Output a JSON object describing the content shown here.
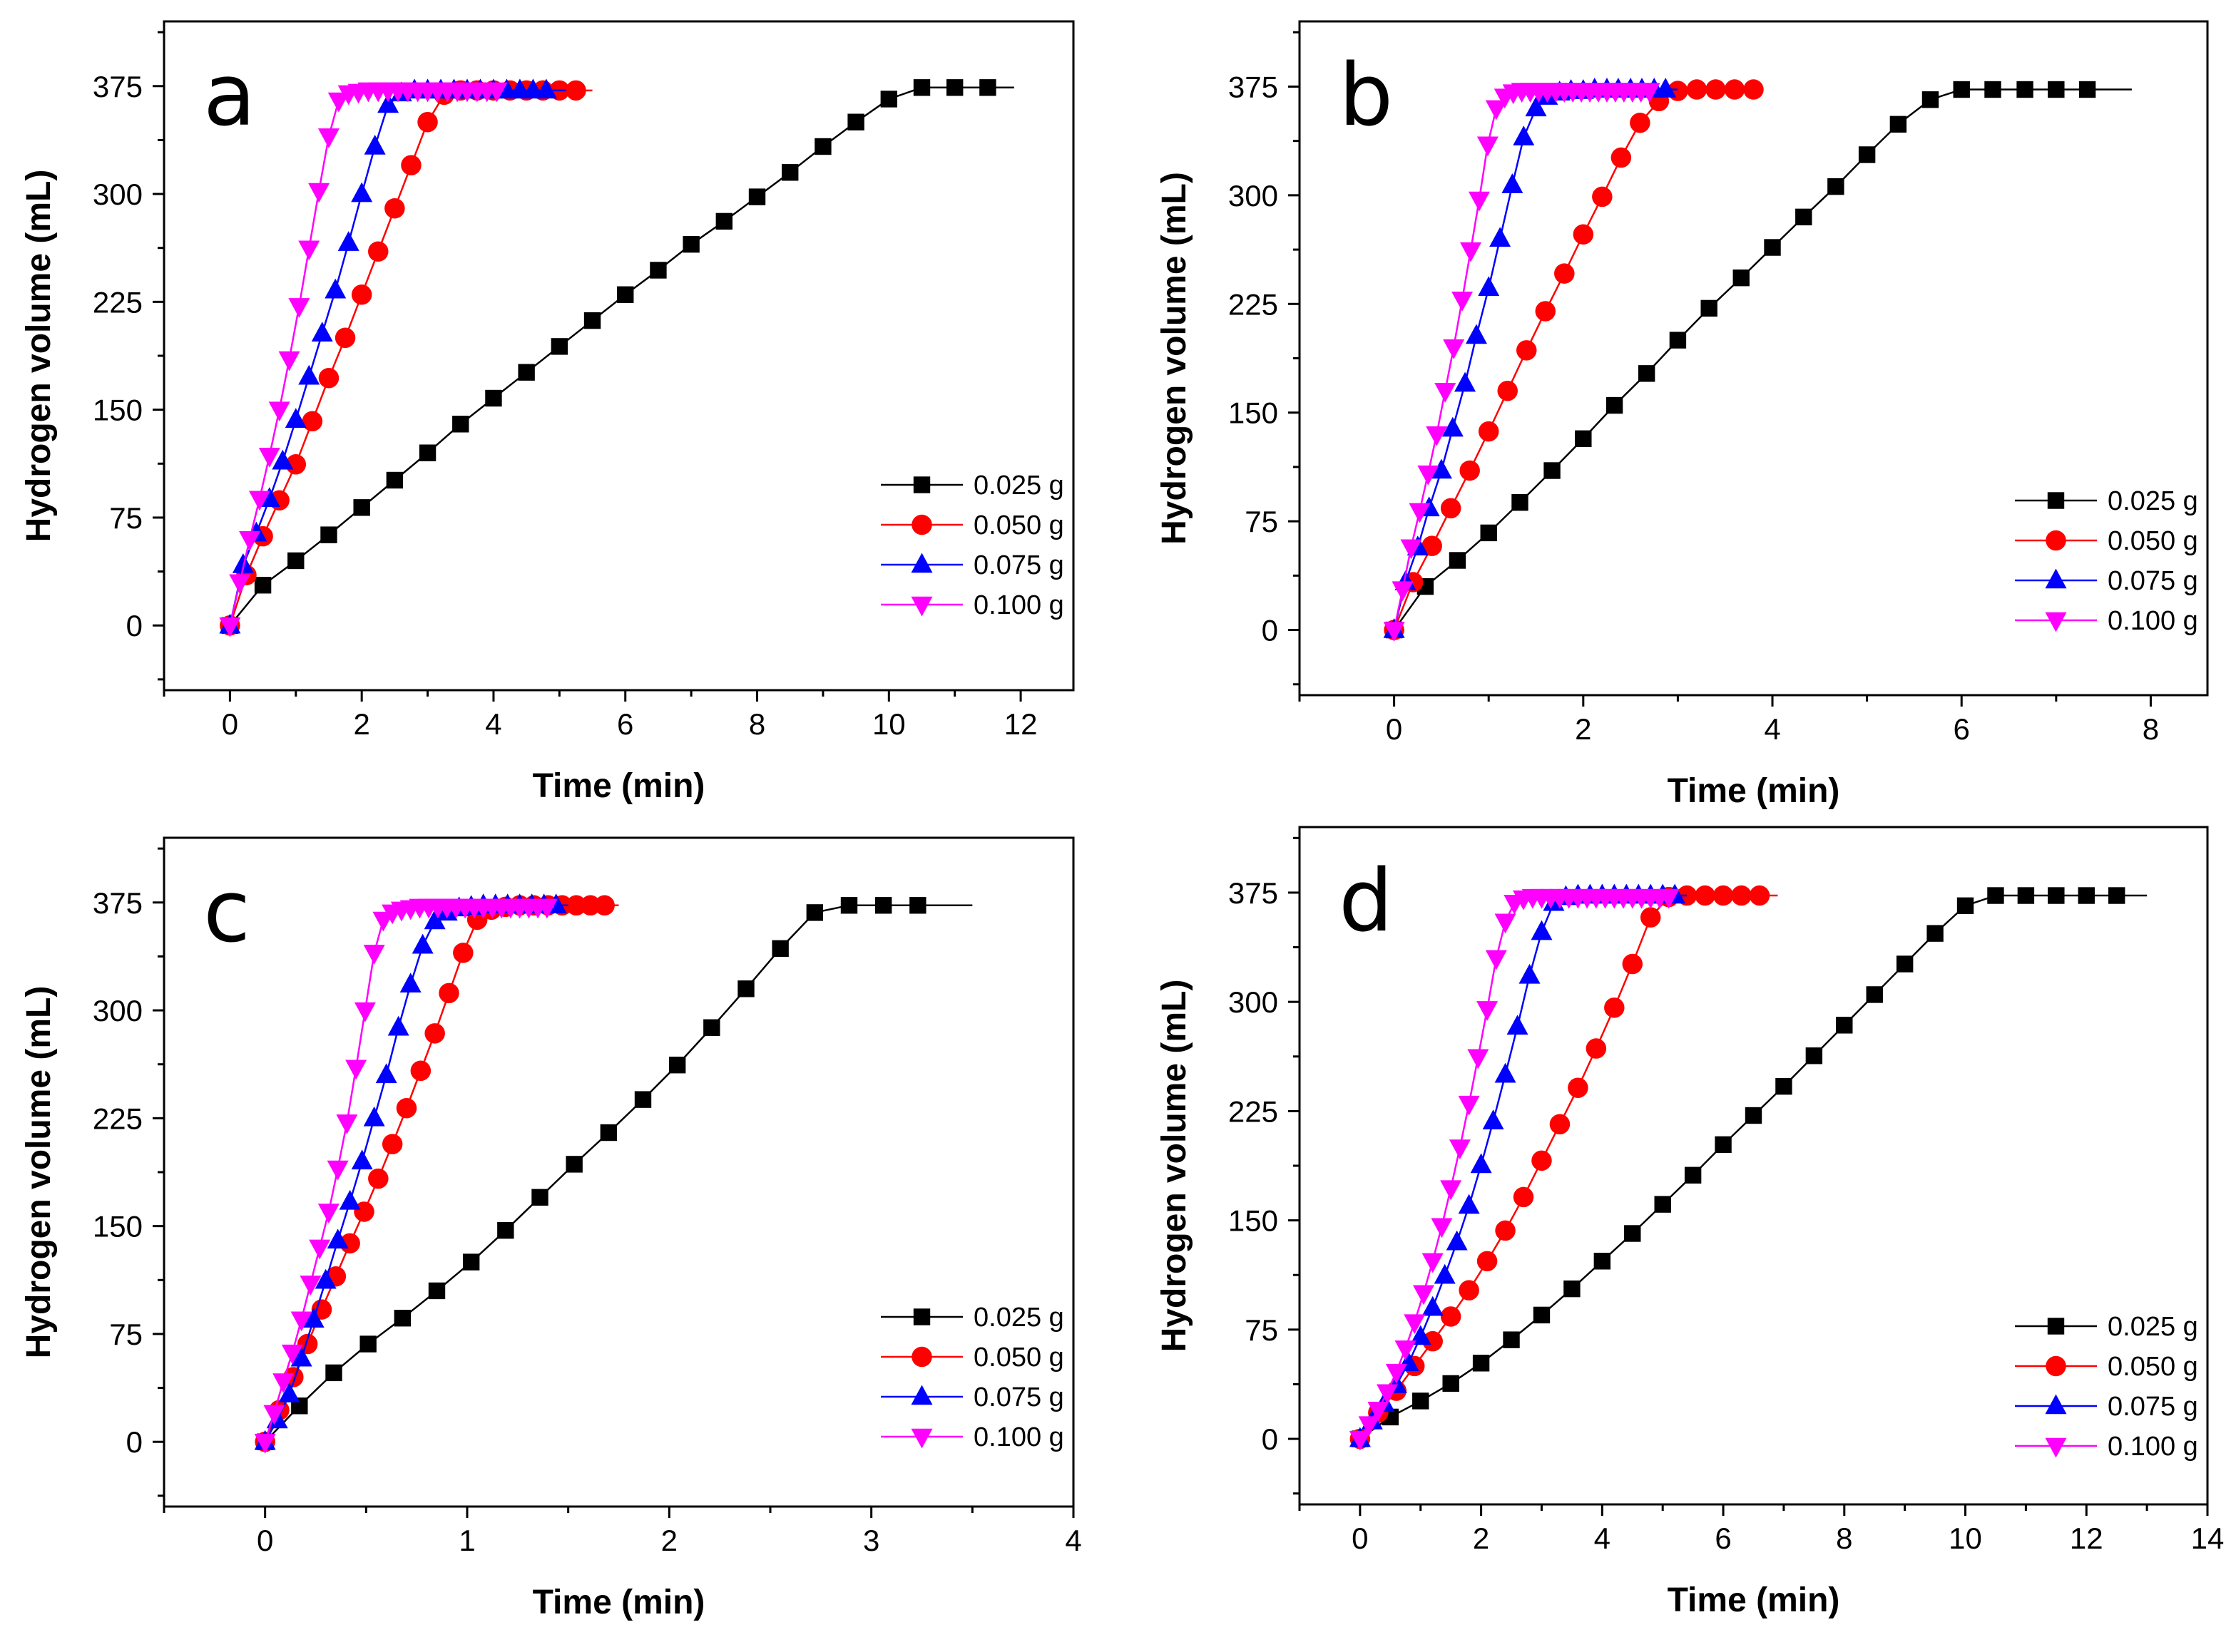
{
  "chart_data": [
    {
      "type": "line",
      "panel_label": "a",
      "xlabel": "Time (min)",
      "ylabel": "Hydrogen volume (mL)",
      "xlim": [
        -1.0,
        12.8
      ],
      "ylim": [
        -45,
        420
      ],
      "xticks": [
        0,
        2,
        4,
        6,
        8,
        10,
        12
      ],
      "yticks": [
        0,
        75,
        150,
        225,
        300,
        375
      ],
      "legend_position": "center-right",
      "series": [
        {
          "name": "0.025 g",
          "color": "#000000",
          "marker": "square",
          "x": [
            0,
            0.5,
            1,
            1.5,
            2,
            2.5,
            3,
            3.5,
            4,
            4.5,
            5,
            5.5,
            6,
            6.5,
            7,
            7.5,
            8,
            8.5,
            9,
            9.5,
            10,
            10.5,
            11,
            11.5
          ],
          "y": [
            0,
            28,
            45,
            63,
            82,
            101,
            120,
            140,
            158,
            176,
            194,
            212,
            230,
            247,
            265,
            281,
            298,
            315,
            333,
            350,
            366,
            374,
            374,
            374
          ],
          "x_end": 11.9
        },
        {
          "name": "0.050 g",
          "color": "#ff0000",
          "marker": "circle",
          "x": [
            0,
            0.25,
            0.5,
            0.75,
            1.0,
            1.25,
            1.5,
            1.75,
            2.0,
            2.25,
            2.5,
            2.75,
            3.0,
            3.25,
            3.5,
            3.75,
            4.0,
            4.25,
            4.5,
            4.75,
            5.0,
            5.25
          ],
          "y": [
            0,
            35,
            62,
            87,
            112,
            142,
            172,
            200,
            230,
            260,
            290,
            320,
            350,
            369,
            372,
            372,
            372,
            372,
            372,
            372,
            372,
            372
          ],
          "x_end": 5.5
        },
        {
          "name": "0.075 g",
          "color": "#0000ff",
          "marker": "triangle-up",
          "x": [
            0,
            0.2,
            0.4,
            0.6,
            0.8,
            1.0,
            1.2,
            1.4,
            1.6,
            1.8,
            2.0,
            2.2,
            2.4,
            2.6,
            2.8,
            3.0,
            3.2,
            3.4,
            3.6,
            3.8,
            4.0,
            4.2,
            4.4,
            4.6,
            4.8
          ],
          "y": [
            0,
            42,
            64,
            88,
            114,
            143,
            173,
            203,
            233,
            266,
            300,
            333,
            362,
            370,
            372,
            372,
            372,
            372,
            372,
            372,
            372,
            372,
            372,
            372,
            372
          ],
          "x_end": 5.1
        },
        {
          "name": "0.100 g",
          "color": "#ff00ff",
          "marker": "triangle-down",
          "x": [
            0,
            0.15,
            0.3,
            0.45,
            0.6,
            0.75,
            0.9,
            1.05,
            1.2,
            1.35,
            1.5,
            1.65,
            1.8,
            1.95,
            2.1,
            2.25,
            2.4,
            2.55,
            2.7,
            2.85,
            3.0,
            3.15,
            3.3,
            3.45,
            3.6,
            3.75,
            3.9,
            4.05
          ],
          "y": [
            0,
            30,
            60,
            88,
            118,
            150,
            185,
            222,
            262,
            302,
            340,
            365,
            370,
            371,
            372,
            372,
            372,
            372,
            372,
            372,
            372,
            372,
            372,
            372,
            372,
            372,
            372,
            372
          ],
          "x_end": 4.1
        }
      ]
    },
    {
      "type": "line",
      "panel_label": "b",
      "xlabel": "Time (min)",
      "ylabel": "Hydrogen volume (mL)",
      "xlim": [
        -1.0,
        8.6
      ],
      "ylim": [
        -45,
        420
      ],
      "xticks": [
        0,
        2,
        4,
        6,
        8
      ],
      "yticks": [
        0,
        75,
        150,
        225,
        300,
        375
      ],
      "legend_position": "center-right",
      "series": [
        {
          "name": "0.025 g",
          "color": "#000000",
          "marker": "square",
          "x": [
            0,
            0.33,
            0.67,
            1.0,
            1.33,
            1.67,
            2.0,
            2.33,
            2.67,
            3.0,
            3.33,
            3.67,
            4.0,
            4.33,
            4.67,
            5.0,
            5.33,
            5.67,
            6.0,
            6.33,
            6.67,
            7.0,
            7.33
          ],
          "y": [
            0,
            30,
            48,
            67,
            88,
            110,
            132,
            155,
            177,
            200,
            222,
            243,
            264,
            285,
            306,
            328,
            349,
            366,
            373,
            373,
            373,
            373,
            373
          ],
          "x_end": 7.8
        },
        {
          "name": "0.050 g",
          "color": "#ff0000",
          "marker": "circle",
          "x": [
            0,
            0.2,
            0.4,
            0.6,
            0.8,
            1.0,
            1.2,
            1.4,
            1.6,
            1.8,
            2.0,
            2.2,
            2.4,
            2.6,
            2.8,
            3.0,
            3.2,
            3.4,
            3.6,
            3.8
          ],
          "y": [
            0,
            33,
            58,
            84,
            110,
            137,
            165,
            193,
            220,
            246,
            273,
            299,
            326,
            350,
            365,
            372,
            373,
            373,
            373,
            373
          ],
          "x_end": 3.9
        },
        {
          "name": "0.075 g",
          "color": "#0000ff",
          "marker": "triangle-up",
          "x": [
            0,
            0.12,
            0.25,
            0.37,
            0.5,
            0.62,
            0.75,
            0.87,
            1.0,
            1.12,
            1.25,
            1.37,
            1.5,
            1.62,
            1.75,
            1.87,
            2.0,
            2.12,
            2.25,
            2.37,
            2.5,
            2.62,
            2.75,
            2.87
          ],
          "y": [
            0,
            33,
            57,
            84,
            110,
            139,
            170,
            203,
            236,
            270,
            307,
            340,
            360,
            368,
            371,
            372,
            372,
            373,
            373,
            373,
            373,
            373,
            373,
            373
          ],
          "x_end": 3.0
        },
        {
          "name": "0.100 g",
          "color": "#ff00ff",
          "marker": "triangle-down",
          "x": [
            0,
            0.09,
            0.18,
            0.27,
            0.36,
            0.45,
            0.54,
            0.63,
            0.72,
            0.81,
            0.9,
            0.99,
            1.08,
            1.17,
            1.26,
            1.35,
            1.44,
            1.53,
            1.62,
            1.71,
            1.8,
            1.89,
            1.98,
            2.07,
            2.16,
            2.25,
            2.34,
            2.43,
            2.52,
            2.61,
            2.7
          ],
          "y": [
            0,
            28,
            57,
            82,
            108,
            135,
            165,
            195,
            228,
            262,
            297,
            335,
            360,
            368,
            371,
            372,
            372,
            372,
            372,
            372,
            372,
            372,
            372,
            372,
            372,
            372,
            372,
            372,
            372,
            372,
            372
          ],
          "x_end": 2.75
        }
      ]
    },
    {
      "type": "line",
      "panel_label": "c",
      "xlabel": "Time (min)",
      "ylabel": "Hydrogen volume (mL)",
      "xlim": [
        -0.5,
        4.0
      ],
      "ylim": [
        -45,
        420
      ],
      "xticks": [
        0,
        1,
        2,
        3,
        4
      ],
      "yticks": [
        0,
        75,
        150,
        225,
        300,
        375
      ],
      "legend_position": "bottom-right",
      "series": [
        {
          "name": "0.025 g",
          "color": "#000000",
          "marker": "square",
          "x": [
            0,
            0.17,
            0.34,
            0.51,
            0.68,
            0.85,
            1.02,
            1.19,
            1.36,
            1.53,
            1.7,
            1.87,
            2.04,
            2.21,
            2.38,
            2.55,
            2.72,
            2.89,
            3.06,
            3.23
          ],
          "y": [
            0,
            25,
            48,
            68,
            86,
            105,
            125,
            147,
            170,
            193,
            215,
            238,
            262,
            288,
            315,
            343,
            368,
            373,
            373,
            373
          ],
          "x_end": 3.5
        },
        {
          "name": "0.050 g",
          "color": "#ff0000",
          "marker": "circle",
          "x": [
            0,
            0.07,
            0.14,
            0.21,
            0.28,
            0.35,
            0.42,
            0.49,
            0.56,
            0.63,
            0.7,
            0.77,
            0.84,
            0.91,
            0.98,
            1.05,
            1.12,
            1.19,
            1.26,
            1.33,
            1.4,
            1.47,
            1.54,
            1.61,
            1.68
          ],
          "y": [
            0,
            22,
            45,
            68,
            92,
            115,
            138,
            160,
            183,
            207,
            232,
            258,
            284,
            312,
            340,
            363,
            370,
            372,
            373,
            373,
            373,
            373,
            373,
            373,
            373
          ],
          "x_end": 1.75
        },
        {
          "name": "0.075 g",
          "color": "#0000ff",
          "marker": "triangle-up",
          "x": [
            0,
            0.06,
            0.12,
            0.18,
            0.24,
            0.3,
            0.36,
            0.42,
            0.48,
            0.54,
            0.6,
            0.66,
            0.72,
            0.78,
            0.84,
            0.9,
            0.96,
            1.02,
            1.08,
            1.14,
            1.2,
            1.26,
            1.32,
            1.38,
            1.44
          ],
          "y": [
            0,
            15,
            33,
            58,
            85,
            112,
            140,
            167,
            195,
            225,
            255,
            288,
            318,
            345,
            362,
            368,
            371,
            372,
            373,
            373,
            373,
            373,
            373,
            373,
            373
          ],
          "x_end": 1.5
        },
        {
          "name": "0.100 g",
          "color": "#ff00ff",
          "marker": "triangle-down",
          "x": [
            0,
            0.045,
            0.09,
            0.135,
            0.18,
            0.225,
            0.27,
            0.315,
            0.36,
            0.405,
            0.45,
            0.495,
            0.54,
            0.585,
            0.63,
            0.675,
            0.72,
            0.765,
            0.81,
            0.855,
            0.9,
            0.945,
            0.99,
            1.035,
            1.08,
            1.125,
            1.17,
            1.215,
            1.26,
            1.305,
            1.35,
            1.395
          ],
          "y": [
            0,
            20,
            42,
            62,
            85,
            110,
            135,
            160,
            190,
            222,
            260,
            300,
            340,
            363,
            368,
            370,
            371,
            372,
            372,
            372,
            372,
            372,
            372,
            372,
            372,
            372,
            372,
            372,
            372,
            372,
            372,
            372
          ],
          "x_end": 1.43
        }
      ]
    },
    {
      "type": "line",
      "panel_label": "d",
      "xlabel": "Time (min)",
      "ylabel": "Hydrogen volume (mL)",
      "xlim": [
        -1.0,
        14.0
      ],
      "ylim": [
        -45,
        420
      ],
      "xticks": [
        0,
        2,
        4,
        6,
        8,
        10,
        12,
        14
      ],
      "yticks": [
        0,
        75,
        150,
        225,
        300,
        375
      ],
      "legend_position": "bottom-right",
      "series": [
        {
          "name": "0.025 g",
          "color": "#000000",
          "marker": "square",
          "x": [
            0,
            0.5,
            1.0,
            1.5,
            2.0,
            2.5,
            3.0,
            3.5,
            4.0,
            4.5,
            5.0,
            5.5,
            6.0,
            6.5,
            7.0,
            7.5,
            8.0,
            8.5,
            9.0,
            9.5,
            10.0,
            10.5,
            11.0,
            11.5,
            12.0,
            12.5
          ],
          "y": [
            0,
            15,
            26,
            38,
            52,
            68,
            85,
            103,
            122,
            141,
            161,
            181,
            202,
            222,
            242,
            263,
            284,
            305,
            326,
            347,
            366,
            373,
            373,
            373,
            373,
            373
          ],
          "x_end": 13.0
        },
        {
          "name": "0.050 g",
          "color": "#ff0000",
          "marker": "circle",
          "x": [
            0,
            0.3,
            0.6,
            0.9,
            1.2,
            1.5,
            1.8,
            2.1,
            2.4,
            2.7,
            3.0,
            3.3,
            3.6,
            3.9,
            4.2,
            4.5,
            4.8,
            5.1,
            5.4,
            5.7,
            6.0,
            6.3,
            6.6
          ],
          "y": [
            0,
            18,
            33,
            50,
            67,
            84,
            102,
            122,
            143,
            166,
            191,
            216,
            241,
            268,
            296,
            326,
            358,
            372,
            373,
            373,
            373,
            373,
            373
          ],
          "x_end": 6.9
        },
        {
          "name": "0.075 g",
          "color": "#0000ff",
          "marker": "triangle-up",
          "x": [
            0,
            0.2,
            0.4,
            0.6,
            0.8,
            1.0,
            1.2,
            1.4,
            1.6,
            1.8,
            2.0,
            2.2,
            2.4,
            2.6,
            2.8,
            3.0,
            3.2,
            3.4,
            3.6,
            3.8,
            4.0,
            4.2,
            4.4,
            4.6,
            4.8,
            5.0,
            5.2
          ],
          "y": [
            0,
            12,
            24,
            37,
            52,
            70,
            90,
            112,
            135,
            160,
            188,
            218,
            250,
            283,
            318,
            348,
            368,
            372,
            373,
            373,
            373,
            373,
            373,
            373,
            373,
            373,
            373
          ],
          "x_end": 5.4
        },
        {
          "name": "0.100 g",
          "color": "#ff00ff",
          "marker": "triangle-down",
          "x": [
            0,
            0.15,
            0.3,
            0.45,
            0.6,
            0.75,
            0.9,
            1.05,
            1.2,
            1.35,
            1.5,
            1.65,
            1.8,
            1.95,
            2.1,
            2.25,
            2.4,
            2.55,
            2.7,
            2.85,
            3.0,
            3.15,
            3.3,
            3.45,
            3.6,
            3.75,
            3.9,
            4.05,
            4.2,
            4.35,
            4.5,
            4.65,
            4.8,
            4.95,
            5.1
          ],
          "y": [
            0,
            10,
            20,
            32,
            46,
            62,
            80,
            100,
            122,
            146,
            172,
            200,
            230,
            262,
            295,
            330,
            355,
            368,
            371,
            372,
            372,
            372,
            372,
            372,
            372,
            372,
            372,
            372,
            372,
            372,
            372,
            372,
            372,
            372,
            372
          ],
          "x_end": 5.2
        }
      ]
    }
  ]
}
